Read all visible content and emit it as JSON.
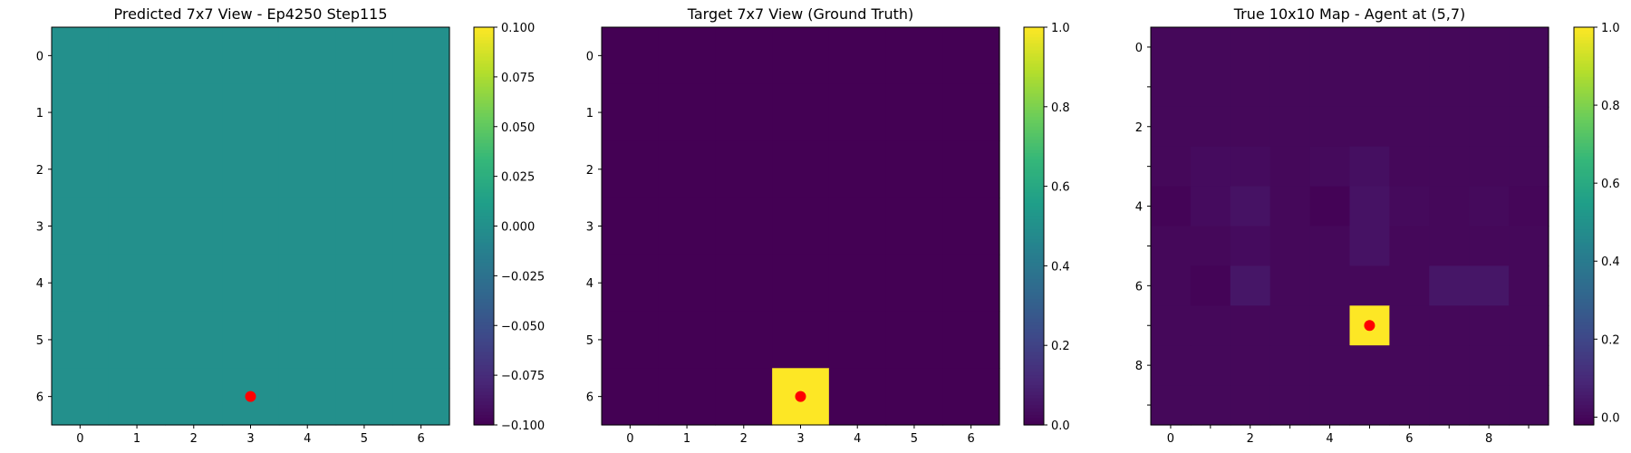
{
  "colormap": "viridis",
  "marker_color": "#ff0000",
  "chart_data": [
    {
      "type": "heatmap",
      "title": "Predicted 7x7 View - Ep4250 Step115",
      "grid_size": 7,
      "xticks": [
        "0",
        "1",
        "2",
        "3",
        "4",
        "5",
        "6"
      ],
      "yticks": [
        "0",
        "1",
        "2",
        "3",
        "4",
        "5",
        "6"
      ],
      "vmin": -0.1,
      "vmax": 0.1,
      "colorbar_ticks": [
        "−0.100",
        "−0.075",
        "−0.050",
        "−0.025",
        "0.000",
        "0.025",
        "0.050",
        "0.075",
        "0.100"
      ],
      "values": [
        [
          0,
          0,
          0,
          0,
          0,
          0,
          0
        ],
        [
          0,
          0,
          0,
          0,
          0,
          0,
          0
        ],
        [
          0,
          0,
          0,
          0,
          0,
          0,
          0
        ],
        [
          0,
          0,
          0,
          0,
          0,
          0,
          0
        ],
        [
          0,
          0,
          0,
          0,
          0,
          0,
          0
        ],
        [
          0,
          0,
          0,
          0,
          0,
          0,
          0
        ],
        [
          0,
          0,
          0,
          0,
          0,
          0,
          0
        ]
      ],
      "marker": {
        "x": 3,
        "y": 6
      }
    },
    {
      "type": "heatmap",
      "title": "Target 7x7 View (Ground Truth)",
      "grid_size": 7,
      "xticks": [
        "0",
        "1",
        "2",
        "3",
        "4",
        "5",
        "6"
      ],
      "yticks": [
        "0",
        "1",
        "2",
        "3",
        "4",
        "5",
        "6"
      ],
      "vmin": 0,
      "vmax": 1,
      "colorbar_ticks": [
        "0.0",
        "0.2",
        "0.4",
        "0.6",
        "0.8",
        "1.0"
      ],
      "values": [
        [
          0,
          0,
          0,
          0,
          0,
          0,
          0
        ],
        [
          0,
          0,
          0,
          0,
          0,
          0,
          0
        ],
        [
          0,
          0,
          0,
          0,
          0,
          0,
          0
        ],
        [
          0,
          0,
          0,
          0,
          0,
          0,
          0
        ],
        [
          0,
          0,
          0,
          0,
          0,
          0,
          0
        ],
        [
          0,
          0,
          0,
          0,
          0,
          0,
          0
        ],
        [
          0,
          0,
          0,
          1,
          0,
          0,
          0
        ]
      ],
      "marker": {
        "x": 3,
        "y": 6
      }
    },
    {
      "type": "heatmap",
      "title": "True 10x10 Map - Agent at (5,7)",
      "grid_size": 10,
      "xticks": [
        "0",
        "",
        "2",
        "",
        "4",
        "",
        "6",
        "",
        "8",
        ""
      ],
      "yticks": [
        "0",
        "",
        "2",
        "",
        "4",
        "",
        "6",
        "",
        "8",
        ""
      ],
      "vmin": -0.02,
      "vmax": 1,
      "colorbar_ticks": [
        "0.0",
        "0.2",
        "0.4",
        "0.6",
        "0.8",
        "1.0"
      ],
      "colorbar_tick_values": [
        0,
        0.2,
        0.4,
        0.6,
        0.8,
        1.0
      ],
      "values": [
        [
          0,
          0,
          0,
          0,
          0,
          0,
          0,
          0,
          0,
          0
        ],
        [
          0,
          0,
          0,
          0,
          0,
          0,
          0,
          0,
          0,
          0
        ],
        [
          0,
          0,
          0,
          0,
          0,
          0,
          0,
          0,
          0,
          0
        ],
        [
          0,
          0.01,
          0.01,
          0,
          0.005,
          0.02,
          0,
          0,
          0,
          0
        ],
        [
          -0.01,
          0.01,
          0.03,
          0,
          -0.015,
          0.03,
          0.005,
          0,
          0.005,
          -0.005
        ],
        [
          0,
          0,
          0.01,
          0,
          0,
          0.03,
          0,
          0,
          0,
          0
        ],
        [
          0,
          -0.01,
          0.04,
          0,
          0,
          0,
          0,
          0.04,
          0.04,
          0
        ],
        [
          0,
          0,
          0,
          0,
          0,
          1,
          0,
          0,
          0,
          0
        ],
        [
          0,
          0,
          0,
          0,
          0,
          0,
          0,
          0,
          0,
          0
        ],
        [
          0,
          0,
          0,
          0,
          0,
          0,
          0,
          0,
          0,
          0
        ]
      ],
      "marker": {
        "x": 5,
        "y": 7
      }
    }
  ]
}
